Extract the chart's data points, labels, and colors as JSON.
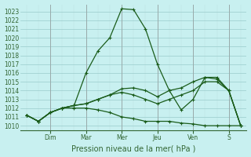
{
  "xlabel": "Pression niveau de la mer( hPa )",
  "bg_color": "#c8f0f0",
  "grid_color_major": "#aacccc",
  "grid_color_minor": "#c0e0e0",
  "line_color": "#1a5c1a",
  "ylim": [
    1009.5,
    1023.8
  ],
  "yticks": [
    1010,
    1011,
    1012,
    1013,
    1014,
    1015,
    1016,
    1017,
    1018,
    1019,
    1020,
    1021,
    1022,
    1023
  ],
  "day_labels": [
    "Dim",
    "Mar",
    "Mer",
    "Jeu",
    "Ven",
    "S"
  ],
  "n_points": 19,
  "series": [
    [
      1011.2,
      1010.5,
      1011.5,
      1012.0,
      1012.3,
      1016.0,
      1018.5,
      1020.0,
      1023.3,
      1023.2,
      1021.0,
      1017.0,
      1014.0,
      1011.8,
      1013.0,
      1015.5,
      1015.5,
      1014.0,
      1010.0
    ],
    [
      1011.2,
      1010.5,
      1011.5,
      1012.0,
      1012.3,
      1012.5,
      1013.0,
      1013.5,
      1014.2,
      1014.3,
      1014.0,
      1013.3,
      1014.0,
      1014.3,
      1015.0,
      1015.5,
      1015.3,
      1014.0,
      1010.0
    ],
    [
      1011.2,
      1010.5,
      1011.5,
      1012.0,
      1012.3,
      1012.5,
      1013.0,
      1013.5,
      1013.8,
      1013.5,
      1013.0,
      1012.5,
      1013.0,
      1013.5,
      1014.0,
      1015.0,
      1015.0,
      1014.0,
      1010.0
    ],
    [
      1011.2,
      1010.5,
      1011.5,
      1012.0,
      1012.0,
      1012.0,
      1011.8,
      1011.5,
      1011.0,
      1010.8,
      1010.5,
      1010.5,
      1010.5,
      1010.3,
      1010.2,
      1010.0,
      1010.0,
      1010.0,
      1010.0
    ]
  ],
  "day_tick_positions": [
    2,
    5,
    8,
    11,
    14,
    17
  ]
}
